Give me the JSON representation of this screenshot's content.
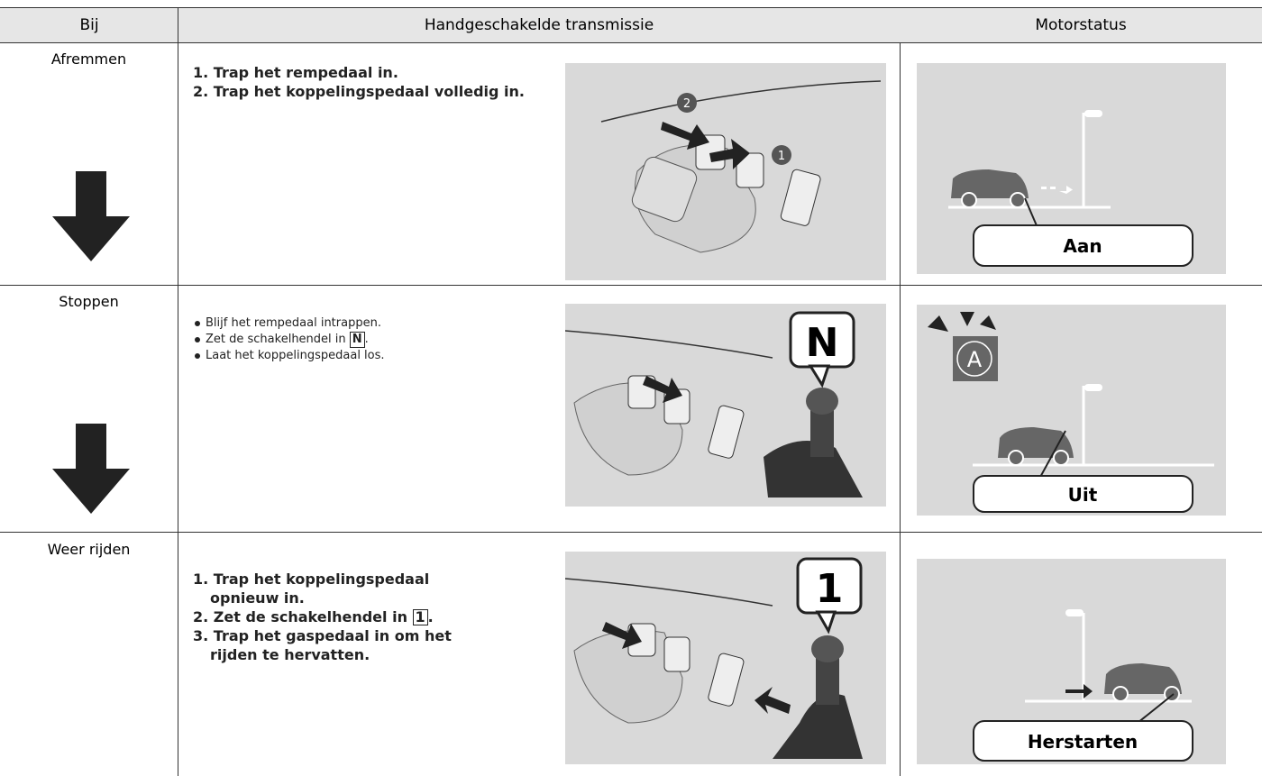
{
  "table": {
    "header": [
      "Bij",
      "Handgeschakelde transmissie",
      "Motorstatus"
    ],
    "rows": [
      {
        "label": "Afremmen",
        "steps": [
          {
            "num": "1.",
            "text": "Trap het rempedaal in."
          },
          {
            "num": "2.",
            "text": "Trap het koppelingspedaal volledig in."
          }
        ],
        "callouts": [
          "2",
          "1"
        ],
        "status": "Aan"
      },
      {
        "label": "Stoppen",
        "bullets": [
          {
            "text": "Blijf het rempedaal intrappen."
          },
          {
            "text": "Zet de schakelhendel in ",
            "key": "N",
            "end": "."
          },
          {
            "text": "Laat het koppelingspedaal los."
          }
        ],
        "gear": "N",
        "icon": "A",
        "status": "Uit"
      },
      {
        "label": "Weer rijden",
        "steps": [
          {
            "num": "1.",
            "text": "Trap het koppelingspedaal opnieuw in."
          },
          {
            "num": "2.",
            "text": "Zet de schakelhendel in ",
            "key": "1",
            "end": "."
          },
          {
            "num": "3.",
            "text": "Trap het gaspedaal in om het rijden te hervatten."
          }
        ],
        "gear": "1",
        "status": "Herstarten"
      }
    ]
  }
}
